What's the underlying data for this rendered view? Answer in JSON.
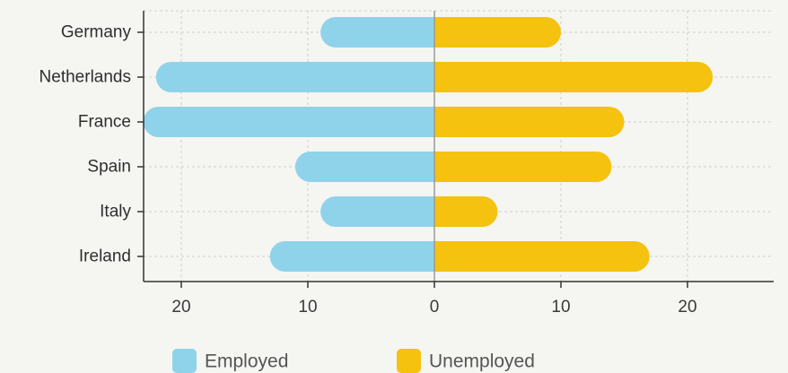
{
  "chart_data": {
    "type": "bar",
    "orientation": "horizontal-diverging",
    "title": "",
    "xlabel": "",
    "ylabel": "",
    "categories": [
      "Germany",
      "Netherlands",
      "France",
      "Spain",
      "Italy",
      "Ireland"
    ],
    "series": [
      {
        "name": "Employed",
        "side": "left",
        "values": [
          9,
          22,
          23,
          11,
          9,
          13
        ]
      },
      {
        "name": "Unemployed",
        "side": "right",
        "values": [
          10,
          22,
          15,
          14,
          5,
          17
        ]
      }
    ],
    "xlim": [
      -23,
      28
    ],
    "xticks": [
      -20,
      -10,
      0,
      10,
      20
    ],
    "xtick_labels": [
      "20",
      "10",
      "0",
      "10",
      "20"
    ],
    "grid": true,
    "legend_position": "bottom",
    "colors": {
      "Employed": "#8fd3ea",
      "Unemployed": "#f4c20f",
      "axis": "#333333",
      "grid": "#cfcfcf"
    }
  }
}
